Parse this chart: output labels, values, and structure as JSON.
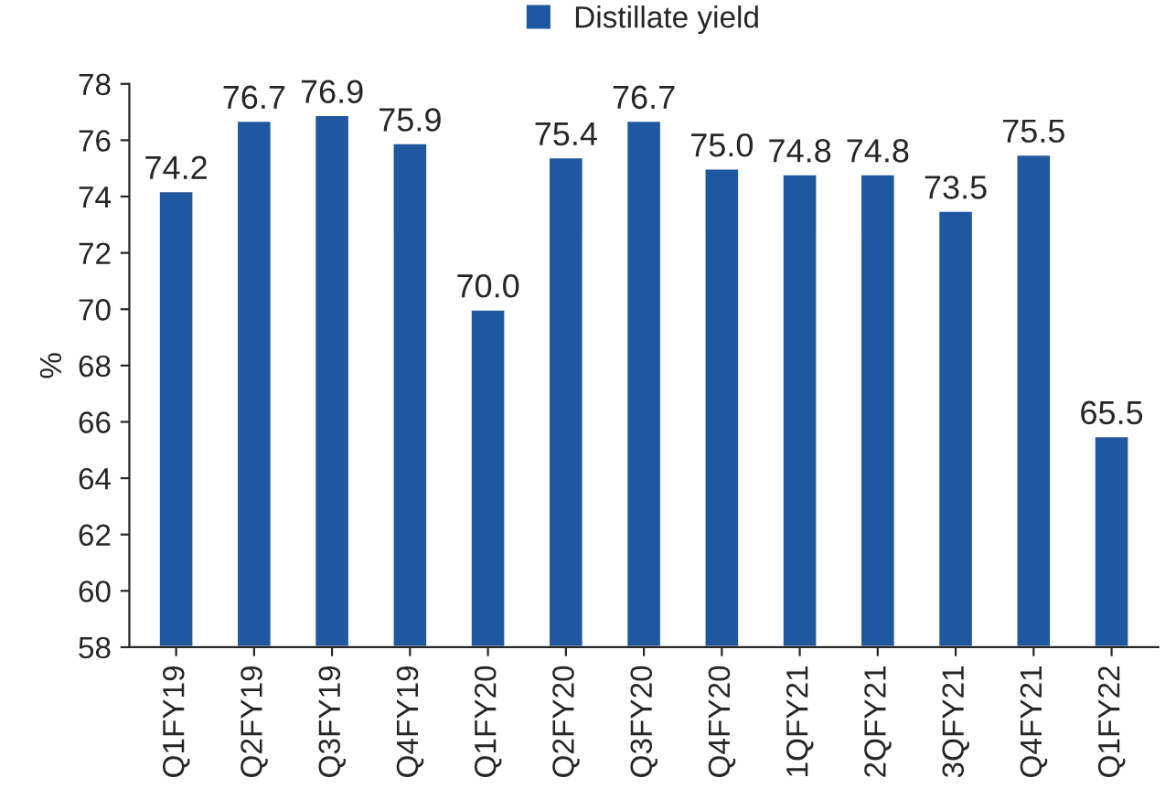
{
  "chart_data": {
    "type": "bar",
    "categories": [
      "Q1FY19",
      "Q2FY19",
      "Q3FY19",
      "Q4FY19",
      "Q1FY20",
      "Q2FY20",
      "Q3FY20",
      "Q4FY20",
      "1QFY21",
      "2QFY21",
      "3QFY21",
      "Q4FY21",
      "Q1FY22"
    ],
    "series": [
      {
        "name": "Distillate yield",
        "color": "#1f58a0",
        "values": [
          74.2,
          76.7,
          76.9,
          75.9,
          70.0,
          75.4,
          76.7,
          75.0,
          74.8,
          74.8,
          73.5,
          75.5,
          65.5
        ],
        "value_labels": [
          "74.2",
          "76.7",
          "76.9",
          "75.9",
          "70.0",
          "75.4",
          "76.7",
          "75.0",
          "74.8",
          "74.8",
          "73.5",
          "75.5",
          "65.5"
        ]
      }
    ],
    "ylabel": "%",
    "ylim": [
      58,
      78
    ],
    "yticks": [
      58,
      60,
      62,
      64,
      66,
      68,
      70,
      72,
      74,
      76,
      78
    ],
    "legend": "top",
    "grid": false
  }
}
